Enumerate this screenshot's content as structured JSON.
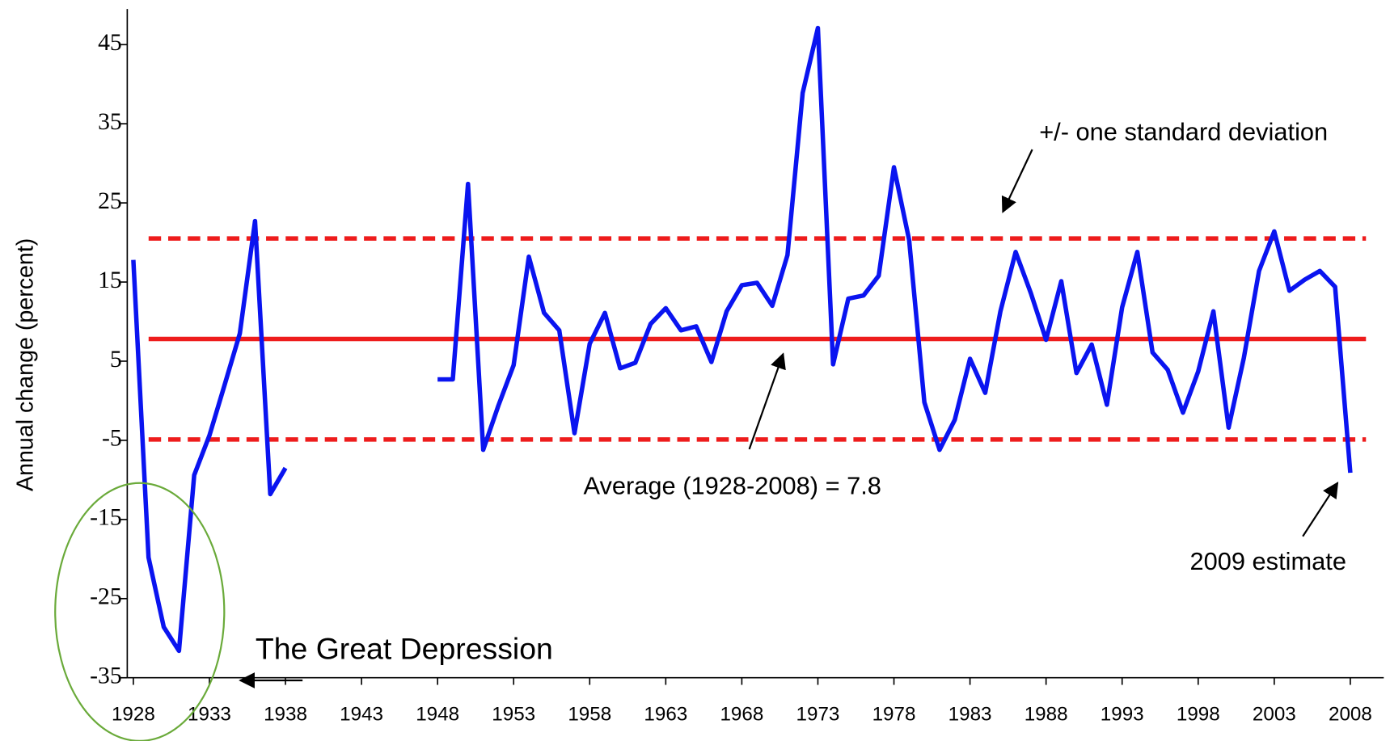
{
  "chart_data": {
    "type": "line",
    "y_label": "Annual change (percent)",
    "x": [
      1928,
      1929,
      1930,
      1931,
      1932,
      1933,
      1934,
      1935,
      1936,
      1937,
      1938,
      1939,
      1940,
      1941,
      1942,
      1943,
      1944,
      1945,
      1946,
      1947,
      1948,
      1949,
      1950,
      1951,
      1952,
      1953,
      1954,
      1955,
      1956,
      1957,
      1958,
      1959,
      1960,
      1961,
      1962,
      1963,
      1964,
      1965,
      1966,
      1967,
      1968,
      1969,
      1970,
      1971,
      1972,
      1973,
      1974,
      1975,
      1976,
      1977,
      1978,
      1979,
      1980,
      1981,
      1982,
      1983,
      1984,
      1985,
      1986,
      1987,
      1988,
      1989,
      1990,
      1991,
      1992,
      1993,
      1994,
      1995,
      1996,
      1997,
      1998,
      1999,
      2000,
      2001,
      2002,
      2003,
      2004,
      2005,
      2006,
      2007,
      2008
    ],
    "series": [
      {
        "color": "#0a14f0",
        "values": [
          17.8,
          -19.8,
          -28.6,
          -31.6,
          -9.4,
          -4.4,
          2.0,
          8.5,
          22.7,
          -11.8,
          -8.5,
          null,
          null,
          null,
          null,
          null,
          null,
          null,
          null,
          null,
          2.7,
          2.7,
          27.4,
          -6.2,
          -0.6,
          4.5,
          18.2,
          11.1,
          8.9,
          -4.1,
          7.2,
          11.1,
          4.1,
          4.8,
          9.7,
          11.7,
          8.9,
          9.4,
          4.9,
          11.3,
          14.6,
          14.9,
          12.0,
          18.4,
          38.9,
          47.1,
          4.6,
          12.9,
          13.3,
          15.8,
          29.5,
          20.3,
          -0.2,
          -6.2,
          -2.4,
          5.3,
          1.0,
          11.3,
          18.8,
          13.6,
          7.7,
          15.1,
          3.5,
          7.1,
          -0.5,
          11.8,
          18.8,
          6.1,
          3.9,
          -1.5,
          3.7,
          11.3,
          -3.4,
          5.4,
          16.4,
          21.4,
          13.9,
          15.3,
          16.4,
          14.4,
          -9.1
        ]
      }
    ],
    "reference_lines": [
      {
        "value": 20.5,
        "style": "dashed",
        "color": "#ee1c1c"
      },
      {
        "value": 7.8,
        "style": "solid",
        "color": "#ee1c1c"
      },
      {
        "value": -4.9,
        "style": "dashed",
        "color": "#ee1c1c"
      }
    ],
    "annotations": [
      "+/- one standard deviation",
      "Average (1928-2008) = 7.8",
      "2009 estimate",
      "The Great Depression"
    ],
    "xlim": [
      1927.6,
      2010.2
    ],
    "ylim": [
      -35,
      49.5
    ],
    "xticks": [
      1928,
      1933,
      1938,
      1943,
      1948,
      1953,
      1958,
      1963,
      1968,
      1973,
      1978,
      1983,
      1988,
      1993,
      1998,
      2003,
      2008
    ],
    "yticks": [
      -35,
      -25,
      -15,
      -5,
      5,
      15,
      25,
      35,
      45
    ]
  }
}
